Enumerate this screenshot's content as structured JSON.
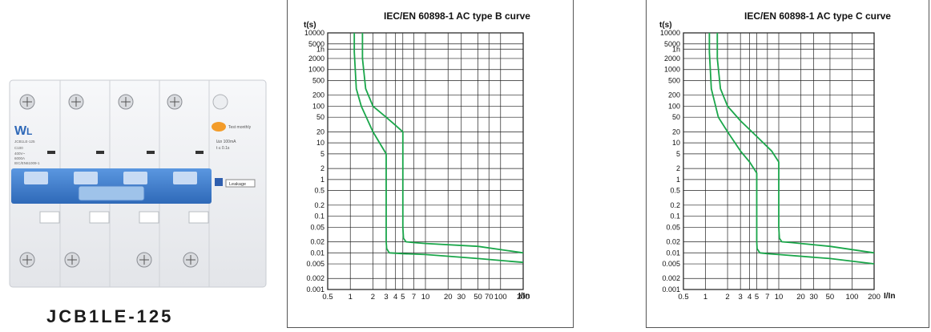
{
  "product": {
    "name": "JCB1LE-125",
    "logo": "WL",
    "module_text": [
      "JCB1LE-125",
      "C100",
      "400V~",
      "6000A",
      "IEC/EN61009-1"
    ],
    "test_label": "Test monthly",
    "rating_text": "I∆n 100mA",
    "delay_text": "t ≤ 0.1s",
    "leakage_label": "Leakage",
    "colors": {
      "body": "#f2f3f5",
      "toggle": "#3f7fcf",
      "test_button": "#f39c2a"
    }
  },
  "chart_data": [
    {
      "type": "line",
      "title": "IEC/EN 60898-1 AC type B curve",
      "ylabel": "t(s)",
      "xlabel": "I/In",
      "xscale": "log",
      "yscale": "log",
      "xlim": [
        0.5,
        200
      ],
      "ylim": [
        0.001,
        10000
      ],
      "grid": true,
      "line_color": "#1aa64a",
      "x_ticks": [
        "0.5",
        "1",
        "2",
        "3",
        "4",
        "5",
        "7",
        "10",
        "20",
        "30",
        "50",
        "70",
        "100",
        "200"
      ],
      "y_ticks": [
        "10000",
        "5000",
        "1h",
        "2000",
        "1000",
        "500",
        "200",
        "100",
        "50",
        "20",
        "10",
        "5",
        "2",
        "1",
        "0.5",
        "0.2",
        "0.1",
        "0.05",
        "0.02",
        "0.01",
        "0.005",
        "0.002",
        "0.001"
      ],
      "series": [
        {
          "x": [
            1.13,
            1.13,
            1.2,
            1.4,
            2,
            3,
            3,
            3.05,
            3.3,
            5,
            10,
            50,
            200
          ],
          "y": [
            10000,
            3000,
            300,
            100,
            20,
            5,
            0.02,
            0.013,
            0.01,
            0.0095,
            0.009,
            0.007,
            0.0055
          ]
        },
        {
          "x": [
            1.45,
            1.45,
            1.6,
            2,
            3,
            4,
            5,
            5,
            5.1,
            5.5,
            7,
            10,
            50,
            200
          ],
          "y": [
            10000,
            2000,
            300,
            100,
            50,
            30,
            20,
            0.05,
            0.025,
            0.02,
            0.019,
            0.018,
            0.015,
            0.01
          ]
        }
      ]
    },
    {
      "type": "line",
      "title": "IEC/EN 60898-1 AC type C curve",
      "ylabel": "t(s)",
      "xlabel": "I/In",
      "xscale": "log",
      "yscale": "log",
      "xlim": [
        0.5,
        200
      ],
      "ylim": [
        0.001,
        10000
      ],
      "grid": true,
      "line_color": "#1aa64a",
      "x_ticks": [
        "0.5",
        "1",
        "2",
        "3",
        "4",
        "5",
        "7",
        "10",
        "20",
        "30",
        "50",
        "100",
        "200"
      ],
      "y_ticks": [
        "10000",
        "5000",
        "1h",
        "2000",
        "1000",
        "500",
        "200",
        "100",
        "50",
        "20",
        "10",
        "5",
        "2",
        "1",
        "0.5",
        "0.2",
        "0.1",
        "0.05",
        "0.02",
        "0.01",
        "0.005",
        "0.002",
        "0.001"
      ],
      "series": [
        {
          "x": [
            1.13,
            1.13,
            1.2,
            1.5,
            2,
            3,
            4,
            5,
            5,
            5.05,
            5.5,
            7,
            10,
            50,
            200
          ],
          "y": [
            10000,
            3000,
            300,
            50,
            20,
            6,
            3,
            1.5,
            0.02,
            0.013,
            0.01,
            0.0095,
            0.009,
            0.007,
            0.005
          ]
        },
        {
          "x": [
            1.45,
            1.45,
            1.6,
            2,
            3,
            5,
            8,
            10,
            10,
            10.2,
            11,
            15,
            20,
            50,
            200
          ],
          "y": [
            10000,
            2000,
            300,
            100,
            40,
            15,
            6,
            3,
            0.05,
            0.025,
            0.02,
            0.019,
            0.018,
            0.015,
            0.01
          ]
        }
      ]
    }
  ]
}
